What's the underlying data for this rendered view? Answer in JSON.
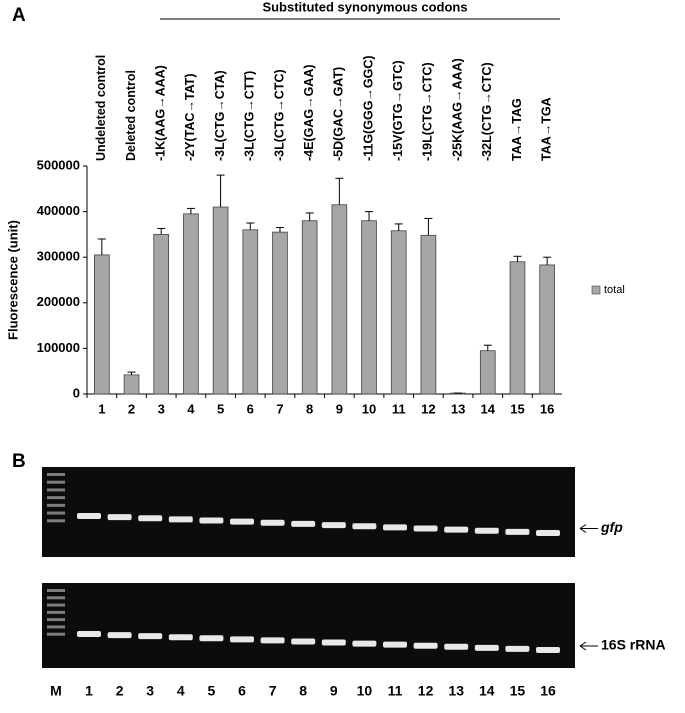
{
  "chart_data": {
    "type": "bar",
    "panel_label": "A",
    "group_label": "Substituted synonymous codons",
    "y_label": "Fluorescence (unit)",
    "categories": [
      "1",
      "2",
      "3",
      "4",
      "5",
      "6",
      "7",
      "8",
      "9",
      "10",
      "11",
      "12",
      "13",
      "14",
      "15",
      "16"
    ],
    "condition_labels": [
      "Undeleted control",
      "Deleted control",
      "-1K(AAG→AAA)",
      "-2Y(TAC→TAT)",
      "-3L(CTG→CTA)",
      "-3L(CTG→CTT)",
      "-3L(CTG→CTC)",
      "-4E(GAG→GAA)",
      "-5D(GAC→GAT)",
      "-11G(GGG→GGC)",
      "-15V(GTG→GTC)",
      "-19L(CTG→CTC)",
      "-25K(AAG→AAA)",
      "-32L(CTG→CTC)",
      "TAA→TAG",
      "TAA→TGA"
    ],
    "series": [
      {
        "name": "total",
        "color": "#a6a6a6",
        "values": [
          305000,
          42000,
          350000,
          395000,
          410000,
          360000,
          355000,
          380000,
          415000,
          380000,
          358000,
          348000,
          2000,
          95000,
          290000,
          283000
        ],
        "errors": [
          35000,
          6000,
          13000,
          12000,
          70000,
          15000,
          10000,
          17000,
          58000,
          20000,
          15000,
          37000,
          0,
          12000,
          12000,
          17000
        ]
      }
    ],
    "ylim": [
      0,
      500000
    ],
    "yticks": [
      0,
      100000,
      200000,
      300000,
      400000,
      500000
    ],
    "grid": false,
    "legend": "right"
  },
  "gel": {
    "panel_label": "B",
    "lanes": [
      "M",
      "1",
      "2",
      "3",
      "4",
      "5",
      "6",
      "7",
      "8",
      "9",
      "10",
      "11",
      "12",
      "13",
      "14",
      "15",
      "16"
    ],
    "bands": [
      {
        "label": "gfp"
      },
      {
        "label": "16S rRNA"
      }
    ]
  }
}
